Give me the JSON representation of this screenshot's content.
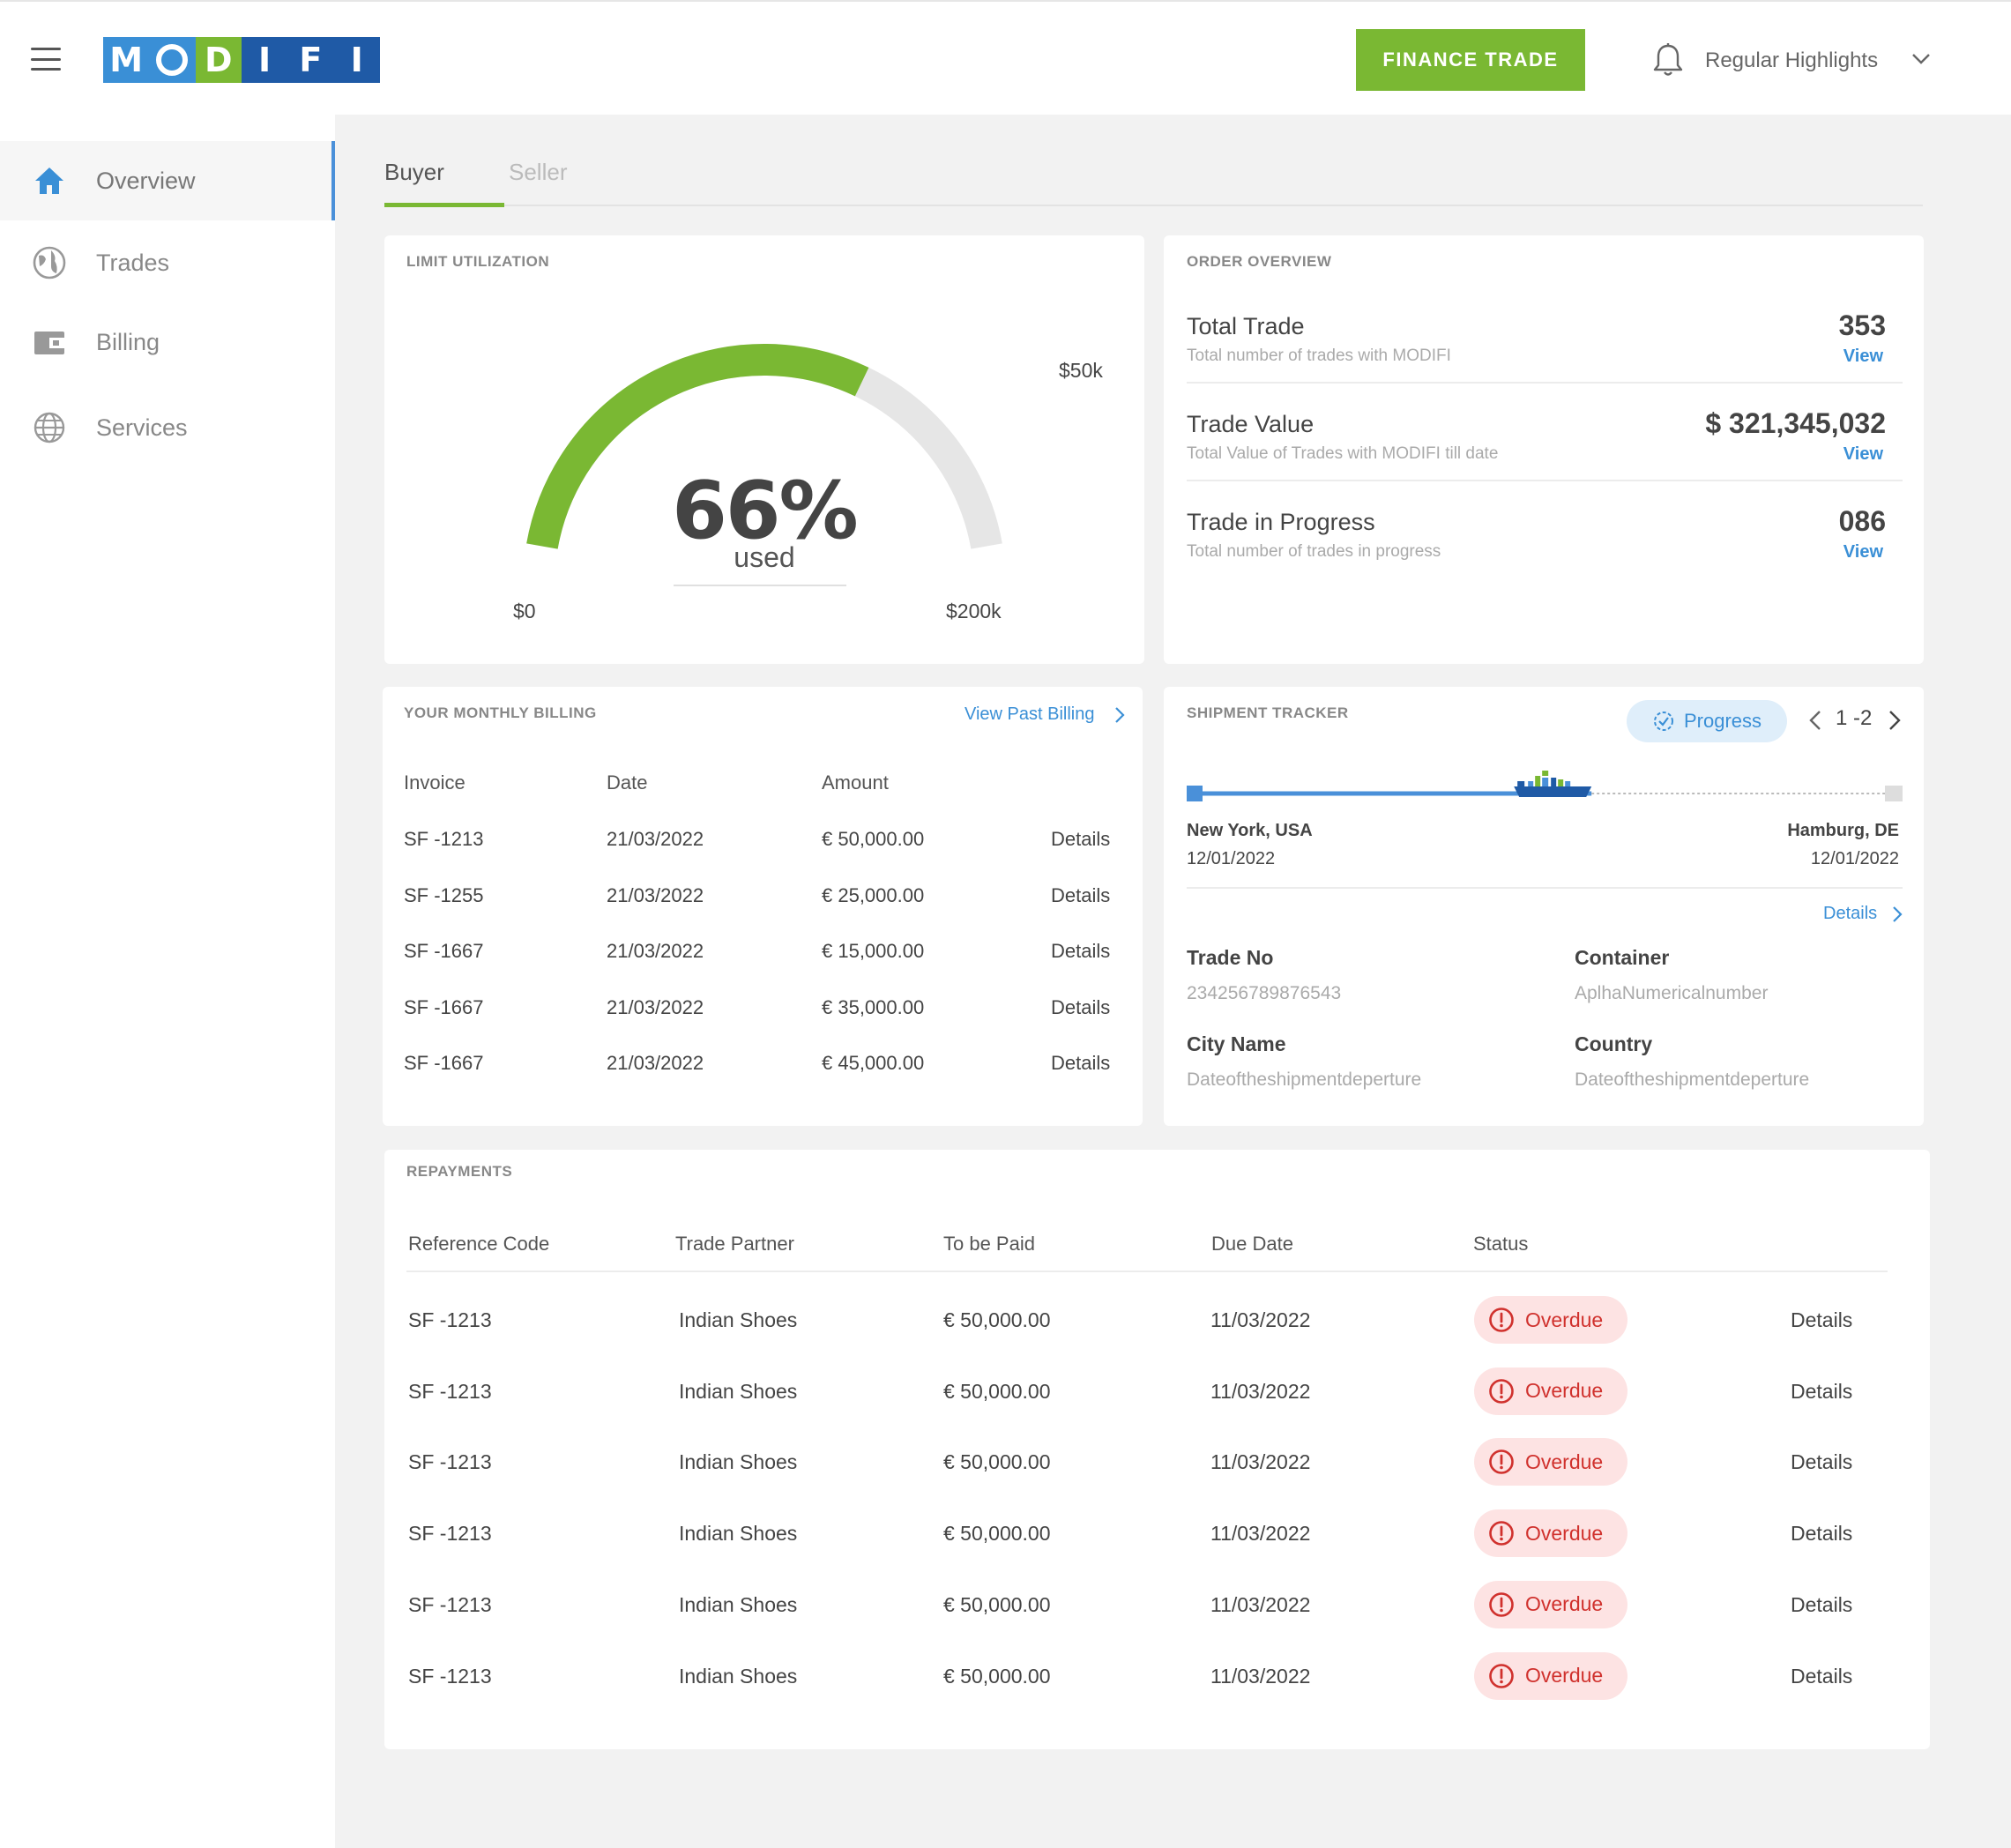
{
  "header": {
    "logo_letters": [
      "M",
      "O",
      "D",
      "I",
      "F",
      "I"
    ],
    "logo_colors": [
      "#3a8fd6",
      "#3a8fd6",
      "#7ab833",
      "#1f5aa6",
      "#1f5aa6",
      "#1f5aa6"
    ],
    "finance_button": "FINANCE TRADE",
    "user_name": "Regular Highlights"
  },
  "sidebar": {
    "items": [
      {
        "label": "Overview",
        "icon": "home-icon",
        "active": true
      },
      {
        "label": "Trades",
        "icon": "globe-icon",
        "active": false
      },
      {
        "label": "Billing",
        "icon": "wallet-icon",
        "active": false
      },
      {
        "label": "Services",
        "icon": "world-grid-icon",
        "active": false
      }
    ]
  },
  "tabs": [
    {
      "label": "Buyer",
      "active": true
    },
    {
      "label": "Seller",
      "active": false
    }
  ],
  "limit": {
    "title": "LIMIT UTILIZATION",
    "percent_text": "66%",
    "used_text": "used",
    "fraction_used": 0.66,
    "min_label": "$0",
    "mid_label": "$50k",
    "max_label": "$200k",
    "color_used": "#7ab833",
    "color_rest": "#e6e6e6"
  },
  "order": {
    "title": "ORDER OVERVIEW",
    "rows": [
      {
        "title": "Total Trade",
        "sub": "Total number of trades with MODIFI",
        "value": "353",
        "link": "View"
      },
      {
        "title": "Trade Value",
        "sub": "Total Value of Trades with MODIFI till date",
        "value": "$ 321,345,032",
        "link": "View"
      },
      {
        "title": "Trade in Progress",
        "sub": "Total number of trades in progress",
        "value": "086",
        "link": "View"
      }
    ]
  },
  "billing": {
    "title": "YOUR MONTHLY BILLING",
    "past_link": "View Past Billing",
    "headers": [
      "Invoice",
      "Date",
      "Amount"
    ],
    "rows": [
      {
        "invoice": "SF -1213",
        "date": "21/03/2022",
        "amount": "€ 50,000.00",
        "action": "Details"
      },
      {
        "invoice": "SF -1255",
        "date": "21/03/2022",
        "amount": "€ 25,000.00",
        "action": "Details"
      },
      {
        "invoice": "SF -1667",
        "date": "21/03/2022",
        "amount": "€ 15,000.00",
        "action": "Details"
      },
      {
        "invoice": "SF -1667",
        "date": "21/03/2022",
        "amount": "€ 35,000.00",
        "action": "Details"
      },
      {
        "invoice": "SF -1667",
        "date": "21/03/2022",
        "amount": "€ 45,000.00",
        "action": "Details"
      }
    ]
  },
  "shipment": {
    "title": "SHIPMENT TRACKER",
    "status": "Progress",
    "pager": "1 -2",
    "progress_fraction": 0.57,
    "origin": "New York, USA",
    "origin_date": "12/01/2022",
    "destination": "Hamburg, DE",
    "destination_date": "12/01/2022",
    "details_link": "Details",
    "fields": [
      {
        "label": "Trade No",
        "value": "234256789876543"
      },
      {
        "label": "Container",
        "value": "AplhaNumericalnumber"
      },
      {
        "label": "City Name",
        "value": "Dateoftheshipmentdeperture"
      },
      {
        "label": "Country",
        "value": "Dateoftheshipmentdeperture"
      }
    ]
  },
  "repayments": {
    "title": "REPAYMENTS",
    "headers": [
      "Reference Code",
      "Trade Partner",
      "To be Paid",
      "Due Date",
      "Status"
    ],
    "rows": [
      {
        "ref": "SF -1213",
        "partner": "Indian Shoes",
        "amount": "€ 50,000.00",
        "due": "11/03/2022",
        "status": "Overdue",
        "action": "Details"
      },
      {
        "ref": "SF -1213",
        "partner": "Indian Shoes",
        "amount": "€ 50,000.00",
        "due": "11/03/2022",
        "status": "Overdue",
        "action": "Details"
      },
      {
        "ref": "SF -1213",
        "partner": "Indian Shoes",
        "amount": "€ 50,000.00",
        "due": "11/03/2022",
        "status": "Overdue",
        "action": "Details"
      },
      {
        "ref": "SF -1213",
        "partner": "Indian Shoes",
        "amount": "€ 50,000.00",
        "due": "11/03/2022",
        "status": "Overdue",
        "action": "Details"
      },
      {
        "ref": "SF -1213",
        "partner": "Indian Shoes",
        "amount": "€ 50,000.00",
        "due": "11/03/2022",
        "status": "Overdue",
        "action": "Details"
      },
      {
        "ref": "SF -1213",
        "partner": "Indian Shoes",
        "amount": "€ 50,000.00",
        "due": "11/03/2022",
        "status": "Overdue",
        "action": "Details"
      }
    ]
  },
  "colors": {
    "accent": "#7ab833",
    "link": "#3a8fd6",
    "overdue": "#d0312d",
    "overdue_bg": "#fde3e3"
  }
}
